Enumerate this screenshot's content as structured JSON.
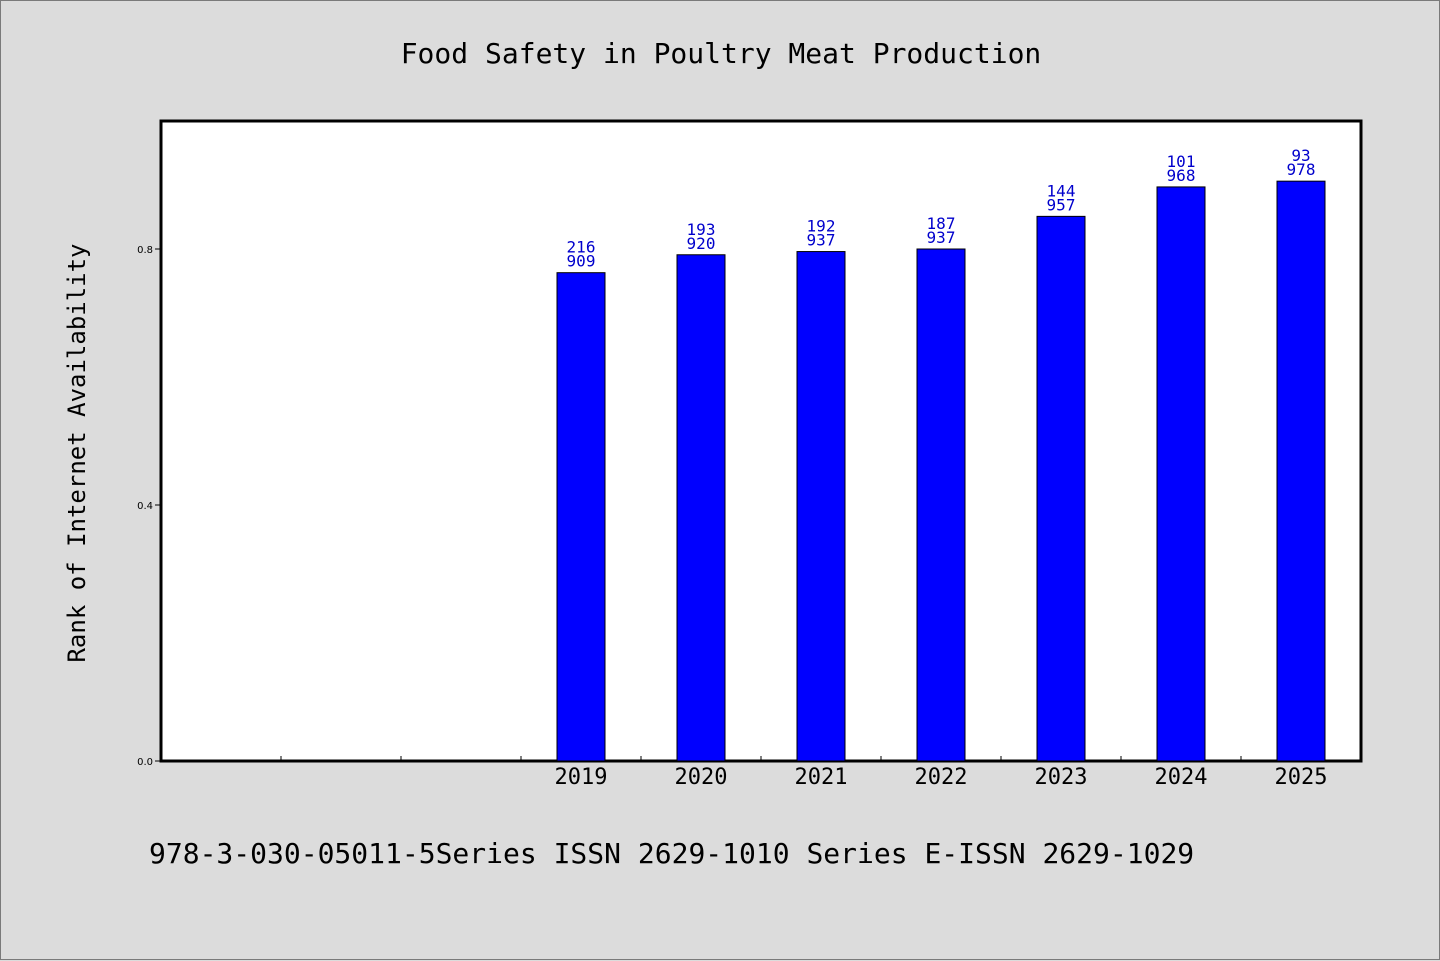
{
  "colors": {
    "background": "#dcdcdc",
    "plot_background": "#ffffff",
    "bar": "#0000ff",
    "label": "#0000cc"
  },
  "footer": "978-3-030-05011-5Series ISSN 2629-1010 Series E-ISSN 2629-1029",
  "chart_data": {
    "type": "bar",
    "title": "Food Safety in Poultry Meat Production",
    "xlabel": "",
    "ylabel": "Rank of Internet Availability",
    "ylim": [
      0,
      1.0
    ],
    "yticks": [
      0.0,
      0.4,
      0.8
    ],
    "ytick_labels": [
      "0.0",
      "0.4",
      "0.8"
    ],
    "grid": false,
    "empty_slots_before": 3,
    "categories": [
      "2019",
      "2020",
      "2021",
      "2022",
      "2023",
      "2024",
      "2025"
    ],
    "values": [
      0.763,
      0.791,
      0.796,
      0.8,
      0.851,
      0.897,
      0.906
    ],
    "labels": [
      [
        "216",
        "909"
      ],
      [
        "193",
        "920"
      ],
      [
        "192",
        "937"
      ],
      [
        "187",
        "937"
      ],
      [
        "144",
        "957"
      ],
      [
        "101",
        "968"
      ],
      [
        "93",
        "978"
      ]
    ]
  }
}
